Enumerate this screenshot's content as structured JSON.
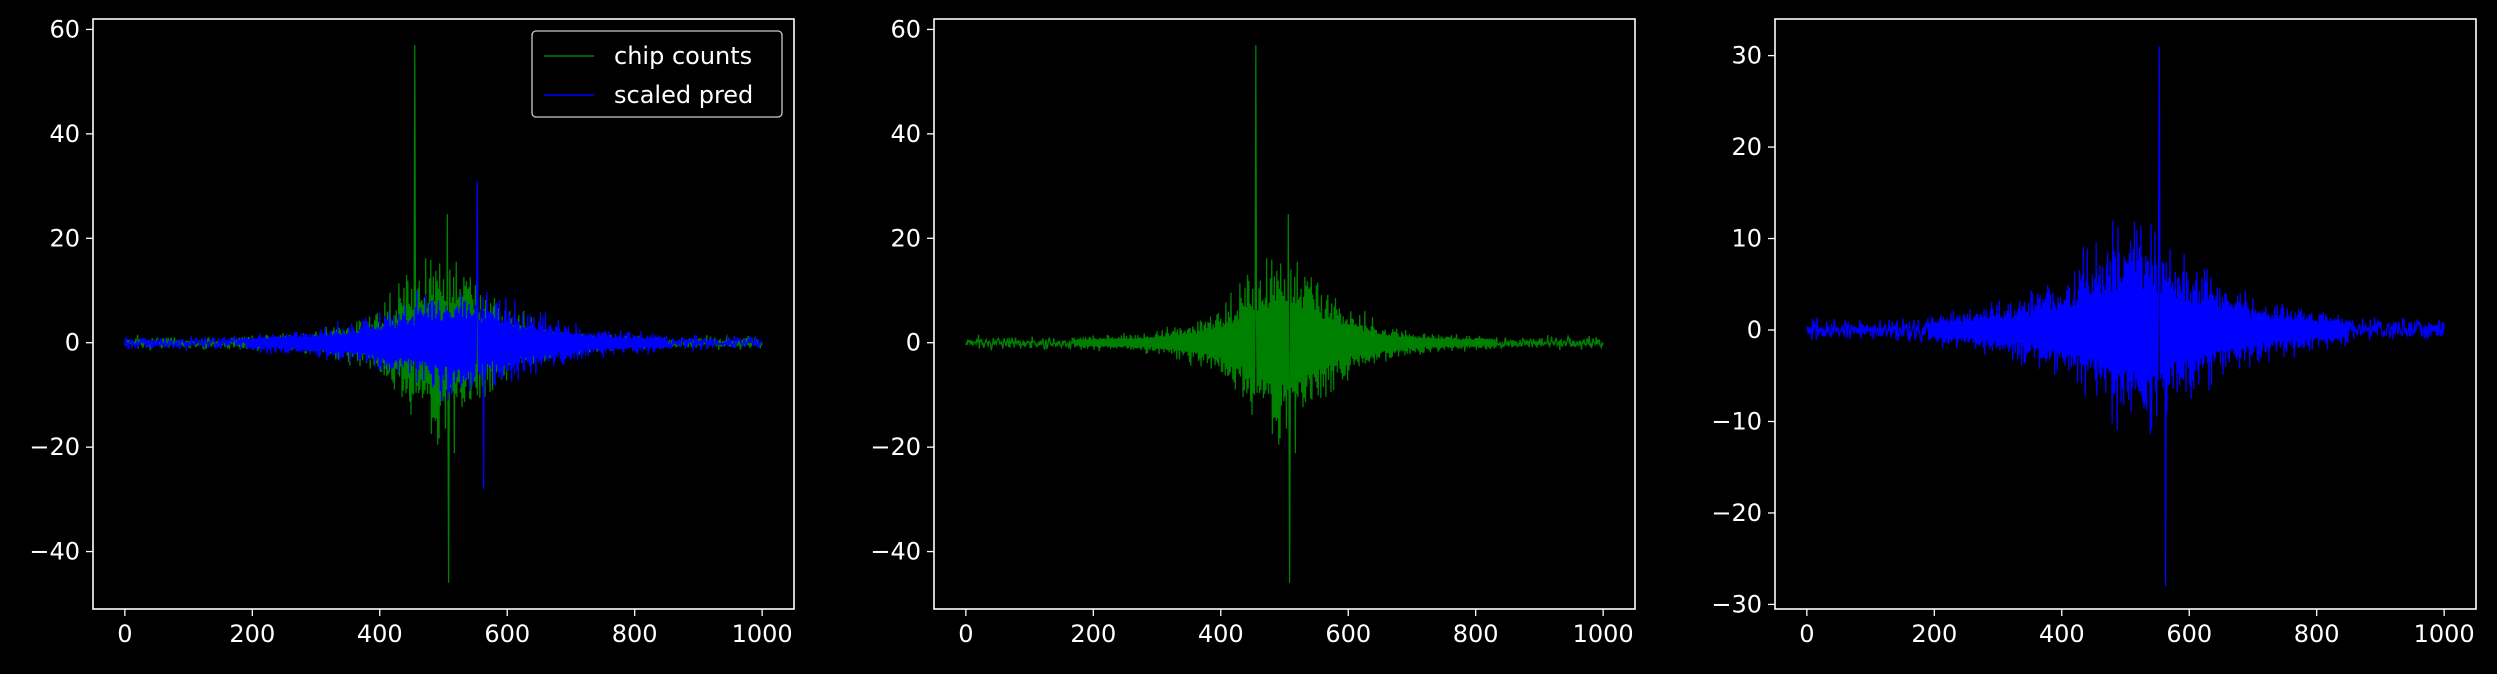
{
  "chart_data": [
    {
      "type": "line",
      "title": "",
      "xlabel": "",
      "ylabel": "",
      "xlim": [
        -50,
        1050
      ],
      "ylim": [
        -51,
        62
      ],
      "xticks": [
        0,
        200,
        400,
        600,
        800,
        1000
      ],
      "yticks": [
        -40,
        -20,
        0,
        20,
        40,
        60
      ],
      "xtick_labels": [
        "0",
        "200",
        "400",
        "600",
        "800",
        "1000"
      ],
      "ytick_labels": [
        "−40",
        "−20",
        "0",
        "20",
        "40",
        "60"
      ],
      "legend": {
        "position": "top-right",
        "entries": [
          "chip counts",
          "scaled pred"
        ]
      },
      "series": [
        {
          "name": "chip counts",
          "color": "#008000",
          "x_range": [
            0,
            1000
          ],
          "peak_max": 57,
          "peak_max_x": 455,
          "peak_min": -46,
          "peak_min_x": 508,
          "center": 500,
          "width": 55
        },
        {
          "name": "scaled pred",
          "color": "#0000ff",
          "x_range": [
            0,
            1000
          ],
          "peak_max": 31,
          "peak_max_x": 553,
          "peak_min": -28,
          "peak_min_x": 563,
          "center": 520,
          "width": 85
        }
      ]
    },
    {
      "type": "line",
      "title": "",
      "xlabel": "",
      "ylabel": "",
      "xlim": [
        -50,
        1050
      ],
      "ylim": [
        -51,
        62
      ],
      "xticks": [
        0,
        200,
        400,
        600,
        800,
        1000
      ],
      "yticks": [
        -40,
        -20,
        0,
        20,
        40,
        60
      ],
      "xtick_labels": [
        "0",
        "200",
        "400",
        "600",
        "800",
        "1000"
      ],
      "ytick_labels": [
        "−40",
        "−20",
        "0",
        "20",
        "40",
        "60"
      ],
      "series": [
        {
          "color": "#008000",
          "x_range": [
            0,
            1000
          ],
          "peak_max": 57,
          "peak_max_x": 455,
          "peak_min": -46,
          "peak_min_x": 508,
          "center": 500,
          "width": 55
        }
      ]
    },
    {
      "type": "line",
      "title": "",
      "xlabel": "",
      "ylabel": "",
      "xlim": [
        -50,
        1050
      ],
      "ylim": [
        -30.5,
        34
      ],
      "xticks": [
        0,
        200,
        400,
        600,
        800,
        1000
      ],
      "yticks": [
        -30,
        -20,
        -10,
        0,
        10,
        20,
        30
      ],
      "xtick_labels": [
        "0",
        "200",
        "400",
        "600",
        "800",
        "1000"
      ],
      "ytick_labels": [
        "−30",
        "−20",
        "−10",
        "0",
        "10",
        "20",
        "30"
      ],
      "series": [
        {
          "color": "#0000ff",
          "x_range": [
            0,
            1000
          ],
          "peak_max": 31,
          "peak_max_x": 553,
          "peak_min": -28,
          "peak_min_x": 563,
          "center": 520,
          "width": 85
        }
      ]
    }
  ]
}
